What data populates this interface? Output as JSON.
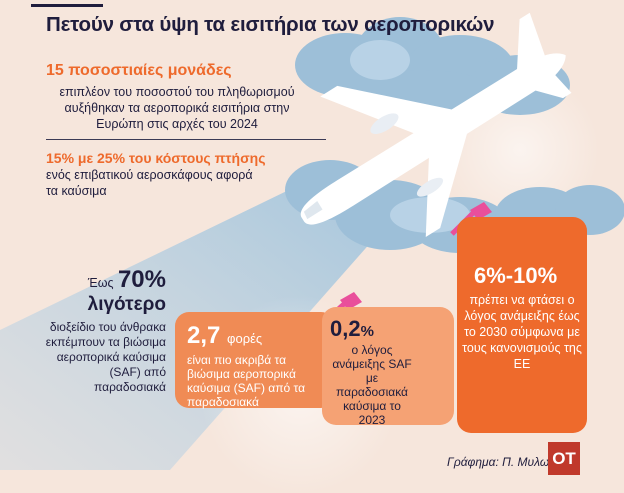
{
  "title": "Πετούν στα ύψη τα εισιτήρια των αεροπορικών",
  "stat1": {
    "headline": "15 ποσοστιαίες μονάδες",
    "body": "επιπλέον του ποσοστού του πληθωρισμού αυξήθηκαν τα αεροπορικά εισιτήρια στην Ευρώπη στις αρχές του 2024"
  },
  "stat2": {
    "highlight": "15% με 25% του κόστους πτήσης",
    "body": " ενός επιβατικού αεροσκάφους αφορά τα καύσιμα"
  },
  "stat3": {
    "prefix": "Έως",
    "number": "70%",
    "word": "λιγότερο",
    "body": "διοξείδιο του άνθρακα εκπέμπουν τα βιώσιμα αεροπορικά καύσιμα (SAF) από παραδοσιακά"
  },
  "card1": {
    "number": "2,7",
    "unit": "φορές",
    "body": "είναι πιο ακριβά τα βιώσιμα αεροπορικά καύσιμα (SAF) από τα παραδοσιακά"
  },
  "card2": {
    "number": "0,2",
    "unit": "%",
    "body": "ο λόγος ανάμειξης SAF με παραδοσιακά καύσιμα το 2023"
  },
  "card3": {
    "number": "6%-10%",
    "body": "πρέπει να φτάσει ο λόγος ανάμειξης έως το 2030 σύμφωνα με τους κανονισμούς της ΕΕ"
  },
  "credit": "Γράφημα: Π. Μυλωνά",
  "logo": "OT",
  "colors": {
    "accent": "#ee6a2c",
    "navy": "#1f1d3d",
    "background": "#f6e6dc",
    "logo": "#c0392b",
    "sky": "#8fb8d4"
  },
  "icons": [
    "airplane-icon",
    "cloud-icon",
    "fuel-nozzle-icon"
  ]
}
